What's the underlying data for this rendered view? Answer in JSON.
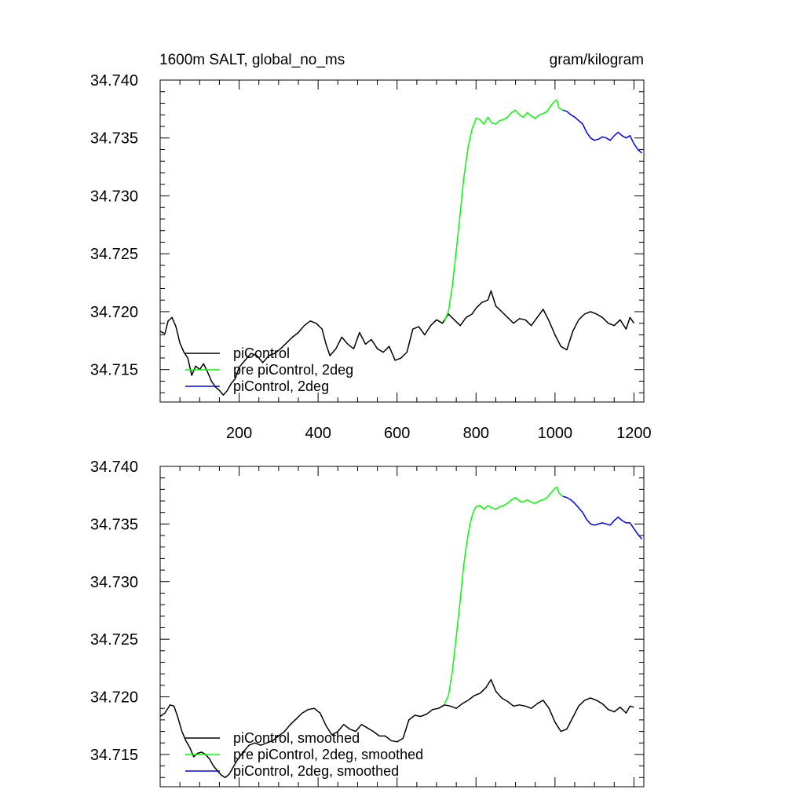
{
  "header": {
    "left_title": "1600m SALT, global_no_ms",
    "right_title": "gram/kilogram"
  },
  "chart_data": [
    {
      "type": "line",
      "panel": "top",
      "ylim": [
        34.7122,
        34.74
      ],
      "xlim": [
        0,
        1225
      ],
      "yticks": [
        "34.715",
        "34.720",
        "34.725",
        "34.730",
        "34.735",
        "34.740"
      ],
      "ytick_values": [
        34.715,
        34.72,
        34.725,
        34.73,
        34.735,
        34.74
      ],
      "xticks": [
        "200",
        "400",
        "600",
        "800",
        "1000",
        "1200"
      ],
      "xtick_values": [
        200,
        400,
        600,
        800,
        1000,
        1200
      ],
      "legend_position": "bottom-left",
      "series": [
        {
          "name": "piControl",
          "color": "#000000",
          "x": [
            0,
            12,
            20,
            30,
            40,
            50,
            60,
            70,
            80,
            90,
            100,
            110,
            120,
            130,
            140,
            150,
            160,
            170,
            180,
            190,
            200,
            215,
            230,
            245,
            260,
            275,
            290,
            305,
            320,
            335,
            350,
            365,
            380,
            395,
            410,
            420,
            430,
            445,
            460,
            475,
            490,
            505,
            520,
            535,
            550,
            565,
            580,
            595,
            610,
            625,
            640,
            655,
            670,
            685,
            700,
            715,
            730,
            745,
            760,
            775,
            790,
            800,
            815,
            830,
            838,
            850,
            865,
            880,
            895,
            910,
            925,
            940,
            955,
            970,
            985,
            1000,
            1015,
            1030,
            1045,
            1060,
            1075,
            1090,
            1105,
            1120,
            1135,
            1150,
            1165,
            1180,
            1190,
            1200
          ],
          "y": [
            34.7183,
            34.7181,
            34.7192,
            34.7195,
            34.7187,
            34.7173,
            34.7165,
            34.716,
            34.7145,
            34.7153,
            34.715,
            34.7155,
            34.7148,
            34.714,
            34.7135,
            34.7132,
            34.7128,
            34.7132,
            34.7138,
            34.7142,
            34.7152,
            34.7158,
            34.7164,
            34.7162,
            34.7156,
            34.7162,
            34.7164,
            34.7168,
            34.7173,
            34.7178,
            34.7182,
            34.7188,
            34.7192,
            34.719,
            34.7185,
            34.7172,
            34.7162,
            34.7168,
            34.7178,
            34.7172,
            34.7168,
            34.7182,
            34.7172,
            34.7176,
            34.7168,
            34.7165,
            34.717,
            34.7158,
            34.716,
            34.7165,
            34.7185,
            34.7187,
            34.718,
            34.7188,
            34.7193,
            34.719,
            34.7198,
            34.7193,
            34.7188,
            34.7195,
            34.7198,
            34.7203,
            34.7208,
            34.721,
            34.7218,
            34.7205,
            34.72,
            34.7195,
            34.719,
            34.7194,
            34.7193,
            34.7188,
            34.7195,
            34.7202,
            34.7192,
            34.718,
            34.717,
            34.7167,
            34.7183,
            34.7193,
            34.7198,
            34.72,
            34.7198,
            34.7195,
            34.719,
            34.7188,
            34.7193,
            34.7185,
            34.7195,
            34.719
          ]
        },
        {
          "name": "pre piControl, 2deg",
          "color": "#00ff00",
          "x": [
            720,
            730,
            740,
            750,
            760,
            765,
            770,
            775,
            780,
            785,
            790,
            795,
            800,
            810,
            820,
            830,
            840,
            850,
            860,
            870,
            880,
            890,
            900,
            910,
            920,
            930,
            940,
            950,
            960,
            970,
            980,
            990,
            1000,
            1005,
            1010,
            1020
          ],
          "y": [
            34.7192,
            34.72,
            34.7222,
            34.7253,
            34.7285,
            34.7303,
            34.7318,
            34.733,
            34.7342,
            34.735,
            34.7358,
            34.7362,
            34.7367,
            34.7366,
            34.7362,
            34.7368,
            34.7363,
            34.7362,
            34.7365,
            34.7366,
            34.7368,
            34.7372,
            34.7374,
            34.737,
            34.7368,
            34.7372,
            34.7369,
            34.7367,
            34.737,
            34.7371,
            34.7373,
            34.7378,
            34.7382,
            34.7383,
            34.7376,
            34.7374
          ]
        },
        {
          "name": "piControl, 2deg",
          "color": "#0000ff",
          "x": [
            1020,
            1030,
            1040,
            1050,
            1060,
            1070,
            1080,
            1090,
            1100,
            1110,
            1120,
            1130,
            1140,
            1150,
            1160,
            1170,
            1180,
            1190,
            1200,
            1210,
            1220
          ],
          "y": [
            34.7374,
            34.7373,
            34.737,
            34.7368,
            34.7365,
            34.7362,
            34.7355,
            34.735,
            34.7348,
            34.7349,
            34.7351,
            34.735,
            34.7348,
            34.7352,
            34.7355,
            34.7352,
            34.735,
            34.7352,
            34.7345,
            34.734,
            34.7337
          ]
        }
      ]
    },
    {
      "type": "line",
      "panel": "bottom",
      "ylim": [
        34.7122,
        34.74
      ],
      "xlim": [
        0,
        1225
      ],
      "yticks": [
        "34.715",
        "34.720",
        "34.725",
        "34.730",
        "34.735",
        "34.740"
      ],
      "ytick_values": [
        34.715,
        34.72,
        34.725,
        34.73,
        34.735,
        34.74
      ],
      "xtick_values": [
        200,
        400,
        600,
        800,
        1000,
        1200
      ],
      "legend_position": "bottom-left",
      "series": [
        {
          "name": "piControl, smoothed",
          "color": "#000000",
          "x": [
            0,
            12,
            25,
            35,
            45,
            55,
            65,
            75,
            85,
            95,
            105,
            115,
            125,
            135,
            145,
            155,
            165,
            175,
            185,
            195,
            210,
            225,
            240,
            255,
            270,
            285,
            300,
            315,
            330,
            345,
            360,
            375,
            390,
            405,
            420,
            435,
            450,
            465,
            480,
            495,
            510,
            525,
            540,
            555,
            570,
            585,
            600,
            615,
            630,
            645,
            660,
            675,
            690,
            705,
            720,
            735,
            750,
            765,
            780,
            795,
            810,
            825,
            838,
            850,
            865,
            880,
            895,
            910,
            925,
            940,
            955,
            970,
            985,
            1000,
            1015,
            1030,
            1045,
            1060,
            1075,
            1090,
            1105,
            1120,
            1135,
            1150,
            1165,
            1180,
            1190,
            1200
          ],
          "y": [
            34.7183,
            34.7186,
            34.7193,
            34.7192,
            34.7182,
            34.717,
            34.7162,
            34.7156,
            34.7148,
            34.7151,
            34.7152,
            34.715,
            34.7146,
            34.714,
            34.7136,
            34.7132,
            34.713,
            34.7133,
            34.7139,
            34.7145,
            34.7152,
            34.7158,
            34.716,
            34.7158,
            34.716,
            34.7162,
            34.7166,
            34.717,
            34.7176,
            34.7181,
            34.7186,
            34.7189,
            34.719,
            34.7186,
            34.7175,
            34.7167,
            34.717,
            34.7176,
            34.7172,
            34.717,
            34.7176,
            34.7173,
            34.717,
            34.7166,
            34.7166,
            34.7162,
            34.7161,
            34.7164,
            34.718,
            34.7184,
            34.7183,
            34.7185,
            34.7189,
            34.719,
            34.7193,
            34.7192,
            34.719,
            34.7194,
            34.7197,
            34.7201,
            34.7203,
            34.7208,
            34.7215,
            34.7205,
            34.7199,
            34.7196,
            34.7192,
            34.7193,
            34.7192,
            34.719,
            34.7194,
            34.7197,
            34.719,
            34.7178,
            34.717,
            34.7172,
            34.7182,
            34.7192,
            34.7197,
            34.7199,
            34.7197,
            34.7194,
            34.7189,
            34.7187,
            34.7191,
            34.7186,
            34.7192,
            34.7191
          ]
        },
        {
          "name": "pre piControl, 2deg, smoothed",
          "color": "#00ff00",
          "x": [
            720,
            730,
            740,
            750,
            760,
            765,
            770,
            775,
            780,
            785,
            790,
            795,
            800,
            810,
            820,
            830,
            840,
            850,
            860,
            870,
            880,
            890,
            900,
            910,
            920,
            930,
            940,
            950,
            960,
            970,
            980,
            990,
            1000,
            1005,
            1010,
            1020
          ],
          "y": [
            34.7194,
            34.7201,
            34.7222,
            34.7252,
            34.7284,
            34.7302,
            34.7317,
            34.733,
            34.7341,
            34.735,
            34.7357,
            34.7362,
            34.7365,
            34.7366,
            34.7363,
            34.7366,
            34.7364,
            34.7363,
            34.7365,
            34.7366,
            34.7368,
            34.7371,
            34.7373,
            34.737,
            34.7369,
            34.7371,
            34.7369,
            34.7368,
            34.737,
            34.7371,
            34.7373,
            34.7377,
            34.7381,
            34.7382,
            34.7377,
            34.7374
          ]
        },
        {
          "name": "piControl, 2deg, smoothed",
          "color": "#0000ff",
          "x": [
            1020,
            1030,
            1040,
            1050,
            1060,
            1070,
            1080,
            1090,
            1100,
            1110,
            1120,
            1130,
            1140,
            1150,
            1160,
            1170,
            1180,
            1190,
            1200,
            1210,
            1220
          ],
          "y": [
            34.7374,
            34.7373,
            34.7371,
            34.7368,
            34.7364,
            34.736,
            34.7354,
            34.735,
            34.7349,
            34.735,
            34.7351,
            34.735,
            34.7349,
            34.7353,
            34.7356,
            34.7353,
            34.7351,
            34.7351,
            34.7346,
            34.7341,
            34.7337
          ]
        }
      ]
    }
  ]
}
